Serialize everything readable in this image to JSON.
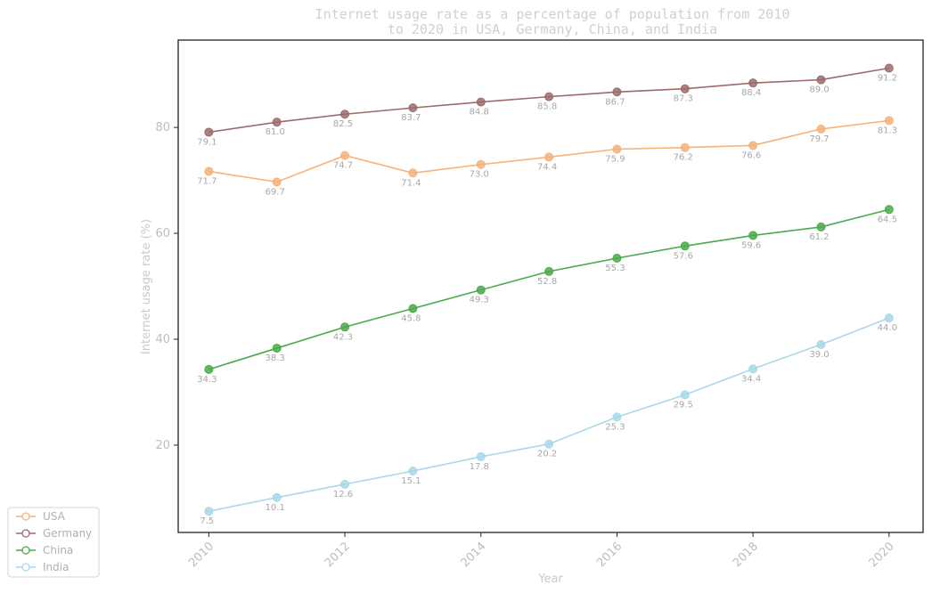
{
  "chart_data": {
    "type": "line",
    "title": "Internet usage rate as a percentage of population from 2010 to 2020 in USA, Germany, China, and India",
    "xlabel": "Year",
    "ylabel": "Internet usage rate (%)",
    "x": [
      2010,
      2011,
      2012,
      2013,
      2014,
      2015,
      2016,
      2017,
      2018,
      2019,
      2020
    ],
    "xticks": [
      2010,
      2012,
      2014,
      2016,
      2018,
      2020
    ],
    "yticks": [
      20,
      40,
      60,
      80
    ],
    "ylim": [
      3.5,
      96.5
    ],
    "xlim": [
      2009.55,
      2020.5
    ],
    "grid": false,
    "legend_position": "lower-left",
    "series": [
      {
        "name": "USA",
        "color": "#f5b27a",
        "values": [
          71.7,
          69.7,
          74.7,
          71.4,
          73.0,
          74.4,
          75.9,
          76.2,
          76.6,
          79.7,
          81.3
        ]
      },
      {
        "name": "Germany",
        "color": "#9c6b6b",
        "values": [
          79.1,
          81.0,
          82.5,
          83.7,
          84.8,
          85.8,
          86.7,
          87.3,
          88.4,
          89.0,
          91.2
        ]
      },
      {
        "name": "China",
        "color": "#4aaa4a",
        "values": [
          34.3,
          38.3,
          42.3,
          45.8,
          49.3,
          52.8,
          55.3,
          57.6,
          59.6,
          61.2,
          64.5
        ]
      },
      {
        "name": "India",
        "color": "#a8d8e8",
        "values": [
          7.5,
          10.1,
          12.6,
          15.1,
          17.8,
          20.2,
          25.3,
          29.5,
          34.4,
          39.0,
          44.0
        ]
      }
    ]
  }
}
